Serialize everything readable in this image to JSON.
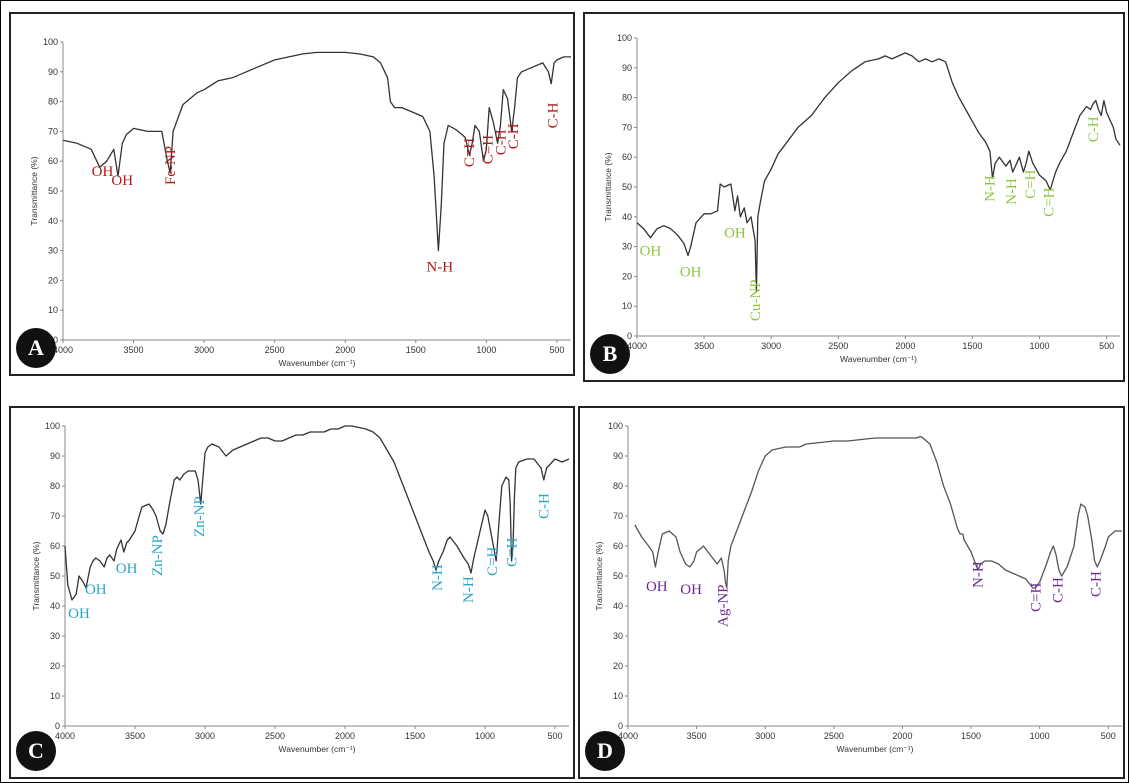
{
  "chart_data": [
    {
      "panel": "A",
      "type": "line",
      "xlabel": "Wavenumber (cm⁻¹)",
      "ylabel": "Transmittance (%)",
      "xlim": [
        4000,
        400
      ],
      "ylim": [
        0,
        100
      ],
      "xticks": [
        4000,
        3500,
        3000,
        2500,
        2000,
        1500,
        1000,
        500
      ],
      "yticks": [
        0,
        10,
        20,
        30,
        40,
        50,
        60,
        70,
        80,
        90,
        100
      ],
      "color": "#333333",
      "annotation_color": "#b01a1a",
      "series": [
        {
          "x": [
            4000,
            3900,
            3800,
            3740,
            3690,
            3640,
            3610,
            3580,
            3550,
            3500,
            3400,
            3300,
            3260,
            3240,
            3220,
            3150,
            3050,
            3000,
            2900,
            2800,
            2700,
            2600,
            2500,
            2400,
            2300,
            2200,
            2100,
            2000,
            1900,
            1800,
            1750,
            1700,
            1680,
            1650,
            1600,
            1550,
            1500,
            1450,
            1400,
            1370,
            1340,
            1320,
            1300,
            1270,
            1230,
            1200,
            1150,
            1120,
            1100,
            1080,
            1050,
            1020,
            1000,
            980,
            950,
            920,
            900,
            880,
            850,
            820,
            800,
            780,
            750,
            700,
            650,
            600,
            560,
            540,
            520,
            500,
            450,
            400
          ],
          "y": [
            67,
            66,
            64,
            58,
            60,
            64,
            55,
            66,
            69,
            71,
            70,
            70,
            60,
            56,
            70,
            79,
            83,
            84,
            87,
            88,
            90,
            92,
            94,
            95,
            96,
            96.5,
            96.5,
            96.5,
            96,
            95,
            93,
            88,
            80,
            78,
            78,
            77,
            76,
            75,
            70,
            55,
            30,
            45,
            66,
            72,
            71,
            70,
            68,
            62,
            66,
            72,
            70,
            60,
            64,
            78,
            73,
            66,
            72,
            84,
            81,
            70,
            78,
            88,
            90,
            91,
            92,
            93,
            90,
            86,
            93,
            94,
            95,
            95
          ]
        }
      ],
      "annotations": [
        {
          "text": "OH",
          "x": 3720,
          "y": 55,
          "rotate": 0
        },
        {
          "text": "OH",
          "x": 3580,
          "y": 52,
          "rotate": 0
        },
        {
          "text": "Fe-NP",
          "x": 3230,
          "y": 52,
          "rotate": -90
        },
        {
          "text": "N-H",
          "x": 1330,
          "y": 23,
          "rotate": 0
        },
        {
          "text": "C=H",
          "x": 1110,
          "y": 58,
          "rotate": -90
        },
        {
          "text": "C=H",
          "x": 980,
          "y": 59,
          "rotate": -90
        },
        {
          "text": "C-H",
          "x": 890,
          "y": 62,
          "rotate": -90
        },
        {
          "text": "C-H",
          "x": 800,
          "y": 64,
          "rotate": -90
        },
        {
          "text": "C-H",
          "x": 520,
          "y": 71,
          "rotate": -90
        }
      ]
    },
    {
      "panel": "B",
      "type": "line",
      "xlabel": "Wavenumber (cm⁻¹)",
      "ylabel": "Transmittance (%)",
      "xlim": [
        4000,
        400
      ],
      "ylim": [
        0,
        100
      ],
      "xticks": [
        4000,
        3500,
        3000,
        2500,
        2000,
        1500,
        1000,
        500
      ],
      "yticks": [
        0,
        10,
        20,
        30,
        40,
        50,
        60,
        70,
        80,
        90,
        100
      ],
      "color": "#333333",
      "annotation_color": "#8ec63f",
      "series": [
        {
          "x": [
            4000,
            3950,
            3900,
            3850,
            3800,
            3750,
            3700,
            3650,
            3620,
            3600,
            3560,
            3500,
            3450,
            3400,
            3380,
            3350,
            3300,
            3270,
            3250,
            3230,
            3200,
            3180,
            3150,
            3120,
            3110,
            3100,
            3080,
            3050,
            3000,
            2950,
            2900,
            2800,
            2700,
            2600,
            2500,
            2400,
            2300,
            2200,
            2150,
            2100,
            2050,
            2000,
            1950,
            1900,
            1850,
            1800,
            1750,
            1700,
            1650,
            1600,
            1550,
            1500,
            1450,
            1400,
            1370,
            1350,
            1330,
            1300,
            1250,
            1220,
            1200,
            1180,
            1150,
            1120,
            1100,
            1080,
            1050,
            1000,
            950,
            920,
            900,
            880,
            850,
            800,
            750,
            700,
            650,
            620,
            600,
            580,
            560,
            540,
            520,
            500,
            470,
            450,
            430,
            400
          ],
          "y": [
            38,
            36,
            33,
            36,
            37,
            36,
            34,
            31,
            27,
            30,
            38,
            41,
            41,
            42,
            51,
            50,
            51,
            42,
            47,
            40,
            43,
            38,
            40,
            32,
            15,
            40,
            45,
            52,
            56,
            61,
            64,
            70,
            74,
            80,
            85,
            89,
            92,
            93,
            94,
            93,
            94,
            95,
            94,
            92,
            93,
            92,
            93,
            92,
            85,
            80,
            76,
            72,
            68,
            65,
            62,
            53,
            58,
            60,
            57,
            59,
            55,
            57,
            60,
            55,
            58,
            62,
            58,
            54,
            52,
            49,
            52,
            55,
            58,
            62,
            68,
            74,
            77,
            76,
            78,
            79,
            76,
            74,
            79,
            75,
            72,
            70,
            66,
            64
          ]
        }
      ],
      "annotations": [
        {
          "text": "OH",
          "x": 3900,
          "y": 27,
          "rotate": 0
        },
        {
          "text": "OH",
          "x": 3600,
          "y": 20,
          "rotate": 0
        },
        {
          "text": "OH",
          "x": 3270,
          "y": 33,
          "rotate": 0
        },
        {
          "text": "Cu-NP",
          "x": 3110,
          "y": 5,
          "rotate": -90
        },
        {
          "text": "N-H",
          "x": 1360,
          "y": 45,
          "rotate": -90
        },
        {
          "text": "N-H",
          "x": 1200,
          "y": 44,
          "rotate": -90
        },
        {
          "text": "C=H",
          "x": 1060,
          "y": 46,
          "rotate": -90
        },
        {
          "text": "C=H",
          "x": 920,
          "y": 40,
          "rotate": -90
        },
        {
          "text": "C-H",
          "x": 590,
          "y": 65,
          "rotate": -90
        }
      ]
    },
    {
      "panel": "C",
      "type": "line",
      "xlabel": "Wavenumber (cm⁻¹)",
      "ylabel": "Transmittance (%)",
      "xlim": [
        4000,
        400
      ],
      "ylim": [
        0,
        100
      ],
      "xticks": [
        4000,
        3500,
        3000,
        2500,
        2000,
        1500,
        1000,
        500
      ],
      "yticks": [
        0,
        10,
        20,
        30,
        40,
        50,
        60,
        70,
        80,
        90,
        100
      ],
      "color": "#333333",
      "annotation_color": "#2aa3c9",
      "series": [
        {
          "x": [
            4000,
            3980,
            3950,
            3920,
            3900,
            3870,
            3850,
            3820,
            3800,
            3780,
            3750,
            3720,
            3700,
            3680,
            3650,
            3630,
            3620,
            3600,
            3580,
            3560,
            3540,
            3500,
            3470,
            3450,
            3400,
            3370,
            3350,
            3320,
            3300,
            3280,
            3250,
            3220,
            3200,
            3180,
            3150,
            3120,
            3100,
            3070,
            3050,
            3030,
            3020,
            3000,
            2980,
            2950,
            2900,
            2850,
            2800,
            2750,
            2700,
            2650,
            2600,
            2550,
            2500,
            2450,
            2400,
            2350,
            2300,
            2250,
            2200,
            2150,
            2100,
            2050,
            2000,
            1950,
            1900,
            1850,
            1800,
            1750,
            1700,
            1650,
            1600,
            1550,
            1500,
            1450,
            1400,
            1370,
            1350,
            1330,
            1300,
            1270,
            1250,
            1200,
            1150,
            1120,
            1100,
            1080,
            1050,
            1000,
            980,
            960,
            940,
            920,
            900,
            880,
            850,
            830,
            820,
            810,
            800,
            790,
            780,
            760,
            700,
            650,
            600,
            590,
            580,
            560,
            520,
            500,
            450,
            400
          ],
          "y": [
            60,
            47,
            42,
            44,
            50,
            48,
            46,
            53,
            55,
            56,
            55,
            53,
            56,
            57,
            55,
            59,
            60,
            62,
            58,
            61,
            62,
            65,
            70,
            73,
            74,
            72,
            70,
            65,
            64,
            67,
            75,
            82,
            83,
            82,
            84,
            85,
            85,
            85,
            82,
            74,
            80,
            91,
            93,
            94,
            93,
            90,
            92,
            93,
            94,
            95,
            96,
            96,
            95,
            95,
            96,
            97,
            97,
            98,
            98,
            98,
            99,
            99,
            100,
            100,
            99.5,
            99,
            98,
            96,
            92,
            88,
            82,
            76,
            70,
            64,
            58,
            55,
            52,
            55,
            58,
            62,
            63,
            60,
            56,
            54,
            51,
            56,
            62,
            72,
            70,
            65,
            60,
            55,
            68,
            80,
            83,
            82,
            74,
            55,
            60,
            76,
            86,
            88,
            89,
            89,
            86,
            84,
            82,
            86,
            88,
            89,
            88,
            89
          ]
        }
      ],
      "annotations": [
        {
          "text": "OH",
          "x": 3900,
          "y": 36,
          "rotate": 0
        },
        {
          "text": "OH",
          "x": 3780,
          "y": 44,
          "rotate": 0
        },
        {
          "text": "OH",
          "x": 3560,
          "y": 51,
          "rotate": 0
        },
        {
          "text": "Zn-NP",
          "x": 3330,
          "y": 50,
          "rotate": -90
        },
        {
          "text": "Zn-NP",
          "x": 3030,
          "y": 63,
          "rotate": -90
        },
        {
          "text": "N-H",
          "x": 1330,
          "y": 45,
          "rotate": -90
        },
        {
          "text": "N-H",
          "x": 1110,
          "y": 41,
          "rotate": -90
        },
        {
          "text": "C=H",
          "x": 940,
          "y": 50,
          "rotate": -90
        },
        {
          "text": "C=H",
          "x": 800,
          "y": 53,
          "rotate": -90
        },
        {
          "text": "C-H",
          "x": 570,
          "y": 69,
          "rotate": -90
        }
      ]
    },
    {
      "panel": "D",
      "type": "line",
      "xlabel": "Wavenumber (cm⁻¹)",
      "ylabel": "Transmittance (%)",
      "xlim": [
        4000,
        400
      ],
      "ylim": [
        0,
        100
      ],
      "xticks": [
        4000,
        3500,
        3000,
        2500,
        2000,
        1500,
        1000,
        500
      ],
      "yticks": [
        0,
        10,
        20,
        30,
        40,
        50,
        60,
        70,
        80,
        90,
        100
      ],
      "color": "#555555",
      "annotation_color": "#6a2a8a",
      "series": [
        {
          "x": [
            3950,
            3900,
            3850,
            3820,
            3800,
            3780,
            3750,
            3700,
            3650,
            3620,
            3580,
            3550,
            3520,
            3500,
            3450,
            3400,
            3350,
            3320,
            3300,
            3290,
            3280,
            3270,
            3250,
            3200,
            3150,
            3100,
            3050,
            3000,
            2950,
            2900,
            2850,
            2800,
            2750,
            2700,
            2600,
            2500,
            2400,
            2300,
            2200,
            2100,
            2000,
            1950,
            1900,
            1870,
            1850,
            1800,
            1750,
            1700,
            1650,
            1600,
            1580,
            1560,
            1550,
            1500,
            1450,
            1430,
            1400,
            1350,
            1300,
            1250,
            1200,
            1150,
            1100,
            1050,
            1030,
            1000,
            950,
            920,
            900,
            880,
            860,
            840,
            800,
            750,
            720,
            700,
            670,
            650,
            620,
            600,
            580,
            560,
            520,
            500,
            450,
            400
          ],
          "y": [
            67,
            63,
            60,
            58,
            53,
            58,
            64,
            65,
            63,
            58,
            54,
            53,
            55,
            58,
            60,
            57,
            54,
            56,
            52,
            48,
            46,
            55,
            60,
            66,
            72,
            78,
            85,
            90,
            92,
            92.5,
            93,
            93,
            93,
            94,
            94.5,
            95,
            95,
            95.5,
            96,
            96,
            96,
            96,
            96,
            96.5,
            96,
            94,
            88,
            80,
            74,
            66,
            64,
            64,
            62,
            58,
            52,
            54,
            55,
            55,
            54,
            52,
            51,
            50,
            49,
            46,
            46,
            48,
            54,
            58,
            60,
            57,
            52,
            50,
            53,
            60,
            70,
            74,
            73,
            70,
            62,
            55,
            53,
            55,
            60,
            63,
            65,
            65
          ]
        }
      ],
      "annotations": [
        {
          "text": "OH",
          "x": 3790,
          "y": 45,
          "rotate": 0
        },
        {
          "text": "OH",
          "x": 3540,
          "y": 44,
          "rotate": 0
        },
        {
          "text": "Ag-NP",
          "x": 3300,
          "y": 33,
          "rotate": -90
        },
        {
          "text": "N-H",
          "x": 1440,
          "y": 46,
          "rotate": -90
        },
        {
          "text": "C=H",
          "x": 1020,
          "y": 38,
          "rotate": -90
        },
        {
          "text": "C-H",
          "x": 860,
          "y": 41,
          "rotate": -90
        },
        {
          "text": "C-H",
          "x": 580,
          "y": 43,
          "rotate": -90
        }
      ]
    }
  ]
}
